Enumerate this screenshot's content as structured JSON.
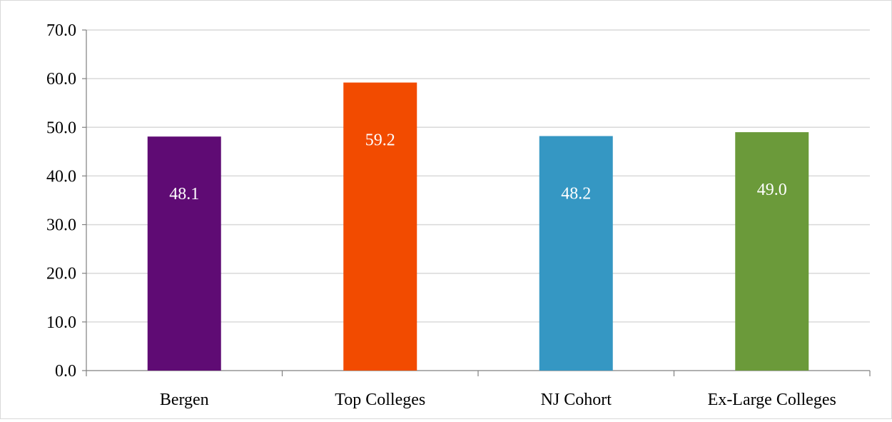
{
  "chart_data": {
    "type": "bar",
    "title": "",
    "xlabel": "",
    "ylabel": "",
    "categories": [
      "Bergen",
      "Top Colleges",
      "NJ Cohort",
      "Ex-Large Colleges"
    ],
    "values": [
      48.1,
      59.2,
      48.2,
      49.0
    ],
    "value_labels": [
      "48.1",
      "59.2",
      "48.2",
      "49.0"
    ],
    "colors": [
      "#5f0b74",
      "#f24b00",
      "#3597c3",
      "#6b9a3a"
    ],
    "ylim": [
      0,
      70
    ],
    "yticks": [
      0,
      10,
      20,
      30,
      40,
      50,
      60,
      70
    ],
    "ytick_labels": [
      "0.0",
      "10.0",
      "20.0",
      "30.0",
      "40.0",
      "50.0",
      "60.0",
      "70.0"
    ],
    "grid": true,
    "gridline_color": "#d9d9d9",
    "legend": "none"
  }
}
